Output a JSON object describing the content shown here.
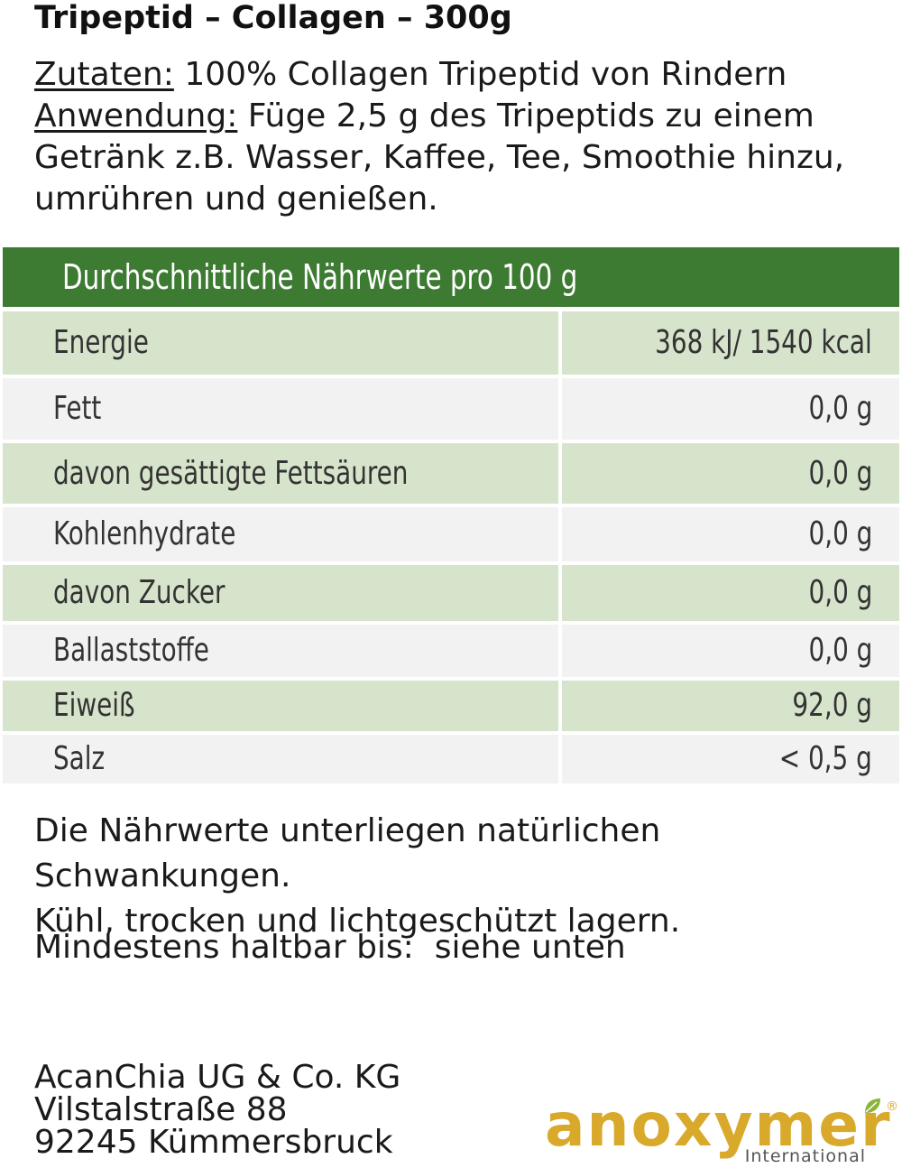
{
  "title": "Tripeptid – Collagen – 300g",
  "ingredients": {
    "label": "Zutaten:",
    "text": " 100% Collagen Tripeptid von Rindern"
  },
  "usage": {
    "label": "Anwendung:",
    "text": " Füge 2,5 g des Tripeptids zu einem Getränk z.B. Wasser, Kaffee, Tee, Smoothie hinzu, umrühren und genießen."
  },
  "nutrition": {
    "header": "Durchschnittliche Nährwerte pro 100 g",
    "rows": [
      {
        "label": "Energie",
        "value": "368 kJ/ 1540 kcal"
      },
      {
        "label": "Fett",
        "value": "0,0 g"
      },
      {
        "label": "davon gesättigte Fettsäuren",
        "value": "0,0 g"
      },
      {
        "label": "Kohlenhydrate",
        "value": "0,0 g"
      },
      {
        "label": "davon Zucker",
        "value": "0,0 g"
      },
      {
        "label": "Ballaststoffe",
        "value": "0,0 g"
      },
      {
        "label": "Eiweiß",
        "value": "92,0 g"
      },
      {
        "label": "Salz",
        "value": "< 0,5 g"
      }
    ],
    "colors": {
      "header": "#3d7b32",
      "row_dark": "#d7e4cc",
      "row_light": "#f2f2f2"
    }
  },
  "notes": {
    "line1": "Die Nährwerte unterliegen natürlichen Schwankungen.",
    "line2": "Kühl, trocken und lichtgeschützt lagern."
  },
  "best_before": "Mindestens haltbar bis:  siehe unten",
  "address": {
    "company": "AcanChia UG & Co. KG",
    "street": "Vilstalstraße 88",
    "city": "92245 Kümmersbruck"
  },
  "logo": {
    "word": "anoxymer",
    "sub": "International",
    "reg": "®",
    "color": "#d9a92b",
    "icon": "leaf-icon"
  }
}
